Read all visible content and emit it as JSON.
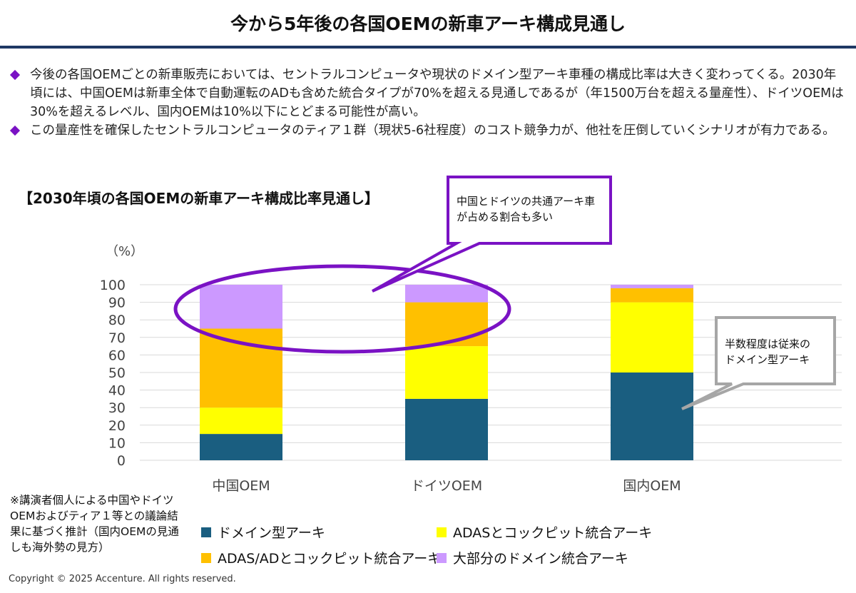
{
  "header": {
    "title": "今から5年後の各国OEMの新車アーキ構成見通し"
  },
  "bullets": [
    "今後の各国OEMごとの新車販売においては、セントラルコンピュータや現状のドメイン型アーキ車種の構成比率は大きく変わってくる。2030年頃には、中国OEMは新車全体で自動運転のADも含めた統合タイプが70%を超える見通しであるが（年1500万台を超える量産性）、ドイツOEMは30%を超えるレベル、国内OEMは10%以下にとどまる可能性が高い。",
    "この量産性を確保したセントラルコンピュータのティア１群（現状5-6社程度）のコスト競争力が、他社を圧倒していくシナリオが有力である。"
  ],
  "chart_data": {
    "type": "bar",
    "stacked": true,
    "title": "【2030年頃の各国OEMの新車アーキ構成比率見通し】",
    "ylabel": "（%）",
    "ylim": [
      0,
      100
    ],
    "yticks": [
      0,
      10,
      20,
      30,
      40,
      50,
      60,
      70,
      80,
      90,
      100
    ],
    "grid": true,
    "legend_position": "bottom",
    "categories": [
      "中国OEM",
      "ドイツOEM",
      "国内OEM"
    ],
    "series": [
      {
        "name": "ドメイン型アーキ",
        "color": "#1a5e80",
        "values": [
          15,
          35,
          50
        ]
      },
      {
        "name": "ADASとコックピット統合アーキ",
        "color": "#ffff00",
        "values": [
          15,
          30,
          40
        ]
      },
      {
        "name": "ADAS/ADとコックピット統合アーキ",
        "color": "#ffc000",
        "values": [
          45,
          25,
          8
        ]
      },
      {
        "name": "大部分のドメイン統合アーキ",
        "color": "#cc99ff",
        "values": [
          25,
          10,
          2
        ]
      }
    ],
    "annotations": [
      {
        "text_lines": [
          "中国とドイツの共通アーキ車",
          "が占める割合も多い"
        ],
        "color": "#7a12c4"
      },
      {
        "text_lines": [
          "半数程度は従来の",
          "ドメイン型アーキ"
        ],
        "color": "#a6a6a6"
      }
    ]
  },
  "note": "※講演者個人による中国やドイツOEMおよびティア１等との議論結果に基づく推計（国内OEMの見通しも海外勢の見方）",
  "copyright": "Copyright © 2025 Accenture. All rights reserved."
}
